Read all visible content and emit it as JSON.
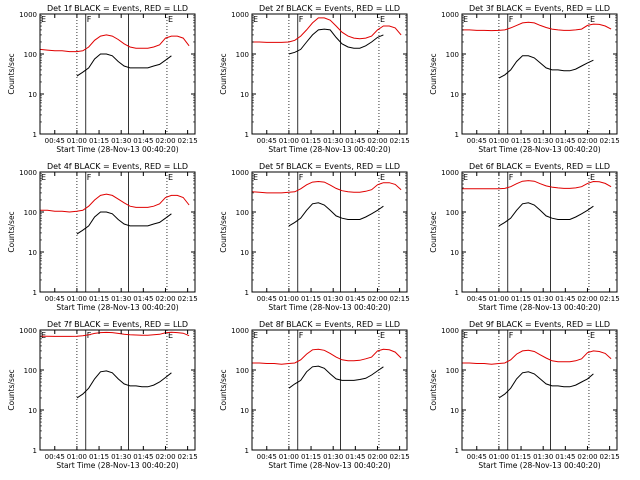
{
  "colors": {
    "events": "#000000",
    "lld": "#e00000"
  },
  "chart_data": {
    "shared": {
      "type": "line",
      "ylabel": "Counts/sec",
      "xlabel": "Start Time (28-Nov-13 00:40:20)",
      "yscale": "log",
      "ylim": [
        1,
        1000
      ],
      "xlim_minutes": [
        -5,
        100
      ],
      "y_ticks": [
        "1",
        "10",
        "100",
        "1000"
      ],
      "x_ticks": [
        {
          "m": 5,
          "label": "00:45"
        },
        {
          "m": 20,
          "label": "01:00"
        },
        {
          "m": 35,
          "label": "01:15"
        },
        {
          "m": 50,
          "label": "01:30"
        },
        {
          "m": 65,
          "label": "01:45"
        },
        {
          "m": 80,
          "label": "02:00"
        },
        {
          "m": 95,
          "label": "02:15"
        }
      ],
      "dotted_lines_minutes": [
        20,
        81
      ],
      "solid_lines_minutes": [
        26,
        55
      ],
      "markers": [
        {
          "m": -5,
          "label": "E"
        },
        {
          "m": 26,
          "label": "F"
        },
        {
          "m": 81,
          "label": "E"
        }
      ]
    },
    "panels": [
      {
        "title": "Det 1f BLACK = Events, RED = LLD",
        "series": [
          {
            "color": "events",
            "x": [
              20,
              24,
              28,
              32,
              36,
              40,
              44,
              48,
              52,
              56,
              60,
              64,
              68,
              72,
              76,
              80,
              84
            ],
            "y": [
              28,
              35,
              45,
              75,
              100,
              100,
              90,
              65,
              50,
              45,
              45,
              45,
              45,
              50,
              55,
              70,
              90
            ]
          },
          {
            "color": "lld",
            "x": [
              -5,
              0,
              5,
              10,
              15,
              20,
              24,
              28,
              32,
              36,
              40,
              44,
              48,
              52,
              56,
              60,
              64,
              68,
              72,
              76,
              80,
              84,
              88,
              92,
              96
            ],
            "y": [
              130,
              125,
              120,
              120,
              115,
              115,
              120,
              150,
              220,
              280,
              300,
              280,
              230,
              180,
              150,
              140,
              140,
              140,
              150,
              170,
              250,
              280,
              280,
              250,
              160
            ]
          }
        ]
      },
      {
        "title": "Det 2f BLACK = Events, RED = LLD",
        "series": [
          {
            "color": "events",
            "x": [
              20,
              24,
              28,
              32,
              36,
              40,
              44,
              48,
              52,
              56,
              60,
              64,
              68,
              72,
              76,
              80,
              84
            ],
            "y": [
              100,
              110,
              130,
              200,
              300,
              400,
              420,
              400,
              260,
              180,
              150,
              140,
              140,
              160,
              200,
              260,
              300
            ]
          },
          {
            "color": "lld",
            "x": [
              -5,
              0,
              5,
              10,
              15,
              20,
              24,
              28,
              32,
              36,
              40,
              44,
              48,
              52,
              56,
              60,
              64,
              68,
              72,
              76,
              80,
              84,
              88,
              92,
              96
            ],
            "y": [
              200,
              200,
              195,
              195,
              195,
              200,
              220,
              280,
              400,
              600,
              800,
              800,
              700,
              500,
              350,
              280,
              250,
              240,
              250,
              280,
              400,
              500,
              500,
              450,
              300
            ]
          }
        ]
      },
      {
        "title": "Det 3f BLACK = Events, RED = LLD",
        "series": [
          {
            "color": "events",
            "x": [
              20,
              24,
              28,
              32,
              36,
              40,
              44,
              48,
              52,
              56,
              60,
              64,
              68,
              72,
              76,
              80,
              84
            ],
            "y": [
              25,
              30,
              40,
              65,
              90,
              90,
              80,
              60,
              45,
              40,
              40,
              38,
              38,
              42,
              50,
              60,
              70
            ]
          },
          {
            "color": "lld",
            "x": [
              -5,
              0,
              5,
              10,
              15,
              20,
              24,
              28,
              32,
              36,
              40,
              44,
              48,
              52,
              56,
              60,
              64,
              68,
              72,
              76,
              80,
              84,
              88,
              92,
              96
            ],
            "y": [
              400,
              400,
              390,
              390,
              385,
              390,
              400,
              450,
              520,
              600,
              620,
              600,
              520,
              460,
              420,
              400,
              390,
              390,
              400,
              420,
              520,
              560,
              550,
              500,
              420
            ]
          }
        ]
      },
      {
        "title": "Det 4f BLACK = Events, RED = LLD",
        "series": [
          {
            "color": "events",
            "x": [
              20,
              24,
              28,
              32,
              36,
              40,
              44,
              48,
              52,
              56,
              60,
              64,
              68,
              72,
              76,
              80,
              84
            ],
            "y": [
              28,
              35,
              45,
              75,
              100,
              100,
              90,
              65,
              50,
              45,
              45,
              45,
              45,
              50,
              55,
              70,
              90
            ]
          },
          {
            "color": "lld",
            "x": [
              -5,
              0,
              5,
              10,
              15,
              20,
              24,
              28,
              32,
              36,
              40,
              44,
              48,
              52,
              56,
              60,
              64,
              68,
              72,
              76,
              80,
              84,
              88,
              92,
              96
            ],
            "y": [
              110,
              110,
              105,
              105,
              100,
              105,
              110,
              140,
              200,
              260,
              280,
              260,
              210,
              170,
              140,
              130,
              130,
              130,
              140,
              160,
              230,
              260,
              260,
              230,
              150
            ]
          }
        ]
      },
      {
        "title": "Det 5f BLACK = Events, RED = LLD",
        "series": [
          {
            "color": "events",
            "x": [
              20,
              24,
              28,
              32,
              36,
              40,
              44,
              48,
              52,
              56,
              60,
              64,
              68,
              72,
              76,
              80,
              84
            ],
            "y": [
              45,
              55,
              70,
              110,
              160,
              170,
              150,
              110,
              80,
              70,
              65,
              65,
              65,
              75,
              90,
              110,
              140
            ]
          },
          {
            "color": "lld",
            "x": [
              -5,
              0,
              5,
              10,
              15,
              20,
              24,
              28,
              32,
              36,
              40,
              44,
              48,
              52,
              56,
              60,
              64,
              68,
              72,
              76,
              80,
              84,
              88,
              92,
              96
            ],
            "y": [
              320,
              310,
              300,
              300,
              300,
              310,
              320,
              380,
              480,
              560,
              580,
              560,
              470,
              390,
              340,
              320,
              310,
              310,
              330,
              360,
              480,
              540,
              540,
              490,
              360
            ]
          }
        ]
      },
      {
        "title": "Det 6f BLACK = Events, RED = LLD",
        "series": [
          {
            "color": "events",
            "x": [
              20,
              24,
              28,
              32,
              36,
              40,
              44,
              48,
              52,
              56,
              60,
              64,
              68,
              72,
              76,
              80,
              84
            ],
            "y": [
              45,
              55,
              70,
              110,
              160,
              170,
              150,
              110,
              80,
              70,
              65,
              65,
              65,
              75,
              90,
              110,
              140
            ]
          },
          {
            "color": "lld",
            "x": [
              -5,
              0,
              5,
              10,
              15,
              20,
              24,
              28,
              32,
              36,
              40,
              44,
              48,
              52,
              56,
              60,
              64,
              68,
              72,
              76,
              80,
              84,
              88,
              92,
              96
            ],
            "y": [
              380,
              380,
              380,
              380,
              380,
              380,
              390,
              430,
              510,
              590,
              610,
              590,
              510,
              450,
              420,
              400,
              390,
              390,
              400,
              430,
              520,
              580,
              570,
              520,
              430
            ]
          }
        ]
      },
      {
        "title": "Det 7f BLACK = Events, RED = LLD",
        "series": [
          {
            "color": "events",
            "x": [
              20,
              24,
              28,
              32,
              36,
              40,
              44,
              48,
              52,
              56,
              60,
              64,
              68,
              72,
              76,
              80,
              84
            ],
            "y": [
              20,
              25,
              35,
              60,
              90,
              95,
              85,
              60,
              45,
              40,
              40,
              38,
              38,
              42,
              50,
              65,
              85
            ]
          },
          {
            "color": "lld",
            "x": [
              -5,
              0,
              5,
              10,
              15,
              20,
              24,
              28,
              32,
              36,
              40,
              44,
              48,
              52,
              56,
              60,
              64,
              68,
              72,
              76,
              80,
              84,
              88,
              92,
              96
            ],
            "y": [
              700,
              700,
              690,
              690,
              690,
              700,
              720,
              760,
              820,
              860,
              870,
              860,
              820,
              780,
              760,
              750,
              740,
              740,
              760,
              780,
              850,
              880,
              860,
              830,
              720
            ]
          }
        ]
      },
      {
        "title": "Det 8f BLACK = Events, RED = LLD",
        "series": [
          {
            "color": "events",
            "x": [
              20,
              24,
              28,
              32,
              36,
              40,
              44,
              48,
              52,
              56,
              60,
              64,
              68,
              72,
              76,
              80,
              84
            ],
            "y": [
              35,
              45,
              55,
              90,
              120,
              125,
              110,
              80,
              60,
              55,
              55,
              55,
              58,
              62,
              75,
              95,
              120
            ]
          },
          {
            "color": "lld",
            "x": [
              -5,
              0,
              5,
              10,
              15,
              20,
              24,
              28,
              32,
              36,
              40,
              44,
              48,
              52,
              56,
              60,
              64,
              68,
              72,
              76,
              80,
              84,
              88,
              92,
              96
            ],
            "y": [
              150,
              150,
              145,
              145,
              140,
              145,
              150,
              180,
              250,
              320,
              330,
              310,
              260,
              210,
              180,
              170,
              170,
              175,
              190,
              210,
              300,
              330,
              320,
              280,
              200
            ]
          }
        ]
      },
      {
        "title": "Det 9f BLACK = Events, RED = LLD",
        "series": [
          {
            "color": "events",
            "x": [
              20,
              24,
              28,
              32,
              36,
              40,
              44,
              48,
              52,
              56,
              60,
              64,
              68,
              72,
              76,
              80,
              84
            ],
            "y": [
              20,
              25,
              35,
              60,
              85,
              90,
              80,
              60,
              45,
              40,
              40,
              38,
              38,
              42,
              50,
              60,
              80
            ]
          },
          {
            "color": "lld",
            "x": [
              -5,
              0,
              5,
              10,
              15,
              20,
              24,
              28,
              32,
              36,
              40,
              44,
              48,
              52,
              56,
              60,
              64,
              68,
              72,
              76,
              80,
              84,
              88,
              92,
              96
            ],
            "y": [
              150,
              150,
              145,
              145,
              140,
              145,
              150,
              180,
              250,
              300,
              310,
              290,
              240,
              200,
              170,
              160,
              160,
              160,
              170,
              190,
              270,
              300,
              290,
              260,
              190
            ]
          }
        ]
      }
    ]
  }
}
